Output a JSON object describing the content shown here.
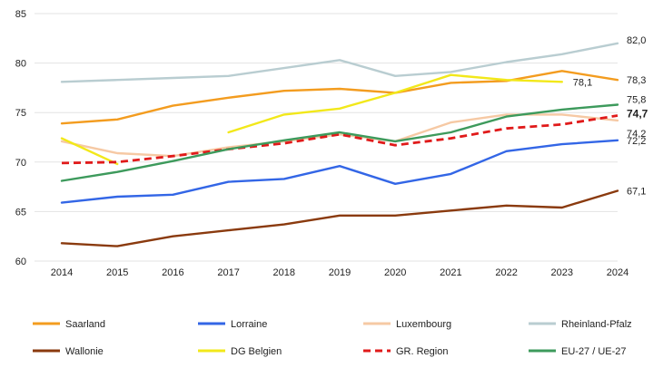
{
  "chart_data": {
    "type": "line",
    "title": "",
    "xlabel": "",
    "ylabel": "",
    "x": [
      2014,
      2015,
      2016,
      2017,
      2018,
      2019,
      2020,
      2021,
      2022,
      2023,
      2024
    ],
    "x_labels": [
      "2014",
      "2015",
      "2016",
      "2017",
      "2018",
      "2019",
      "2020",
      "2021",
      "2022",
      "2023",
      "2024"
    ],
    "ylim": [
      60,
      85
    ],
    "yticks": [
      60,
      65,
      70,
      75,
      80,
      85
    ],
    "grid": "horizontal",
    "series": [
      {
        "name": "Saarland",
        "color": "#F39C1F",
        "dashed": false,
        "values": [
          73.9,
          74.3,
          75.7,
          76.5,
          77.2,
          77.4,
          77.0,
          78.0,
          78.2,
          79.2,
          78.3
        ],
        "end_label": "78,3",
        "end_bold": false
      },
      {
        "name": "Lorraine",
        "color": "#3366E6",
        "dashed": false,
        "values": [
          65.9,
          66.5,
          66.7,
          68.0,
          68.3,
          69.6,
          67.8,
          68.8,
          71.1,
          71.8,
          72.2
        ],
        "end_label": "72,2",
        "end_bold": false
      },
      {
        "name": "Luxembourg",
        "color": "#F6C9A4",
        "dashed": false,
        "values": [
          72.1,
          70.9,
          70.6,
          71.5,
          72.1,
          72.8,
          72.1,
          74.0,
          74.8,
          74.8,
          74.2
        ],
        "end_label": "74,2",
        "end_bold": false
      },
      {
        "name": "Rheinland-Pfalz",
        "color": "#B9CDD1",
        "dashed": false,
        "values": [
          78.1,
          78.3,
          78.5,
          78.7,
          79.5,
          80.3,
          78.7,
          79.1,
          80.1,
          80.9,
          82.0
        ],
        "end_label": "82,0",
        "end_bold": false
      },
      {
        "name": "Wallonie",
        "color": "#8A3A0E",
        "dashed": false,
        "values": [
          61.8,
          61.5,
          62.5,
          63.1,
          63.7,
          64.6,
          64.6,
          65.1,
          65.6,
          65.4,
          67.1
        ],
        "end_label": "67,1",
        "end_bold": false
      },
      {
        "name": "DG Belgien",
        "color": "#F2E81A",
        "dashed": false,
        "values": [
          72.4,
          69.8,
          null,
          73.0,
          74.8,
          75.4,
          77.0,
          78.8,
          78.3,
          78.1,
          null
        ],
        "end_label": "78,1",
        "end_bold": false
      },
      {
        "name": "GR. Region",
        "color": "#E01A1A",
        "dashed": true,
        "values": [
          69.9,
          70.0,
          70.6,
          71.3,
          71.9,
          72.8,
          71.7,
          72.4,
          73.4,
          73.8,
          74.7
        ],
        "end_label": "74,7",
        "end_bold": true
      },
      {
        "name": "EU-27 / UE-27",
        "color": "#3D9A5C",
        "dashed": false,
        "values": [
          68.1,
          69.0,
          70.1,
          71.3,
          72.2,
          73.0,
          72.1,
          73.0,
          74.6,
          75.3,
          75.8
        ],
        "end_label": "75,8",
        "end_bold": false
      }
    ]
  }
}
